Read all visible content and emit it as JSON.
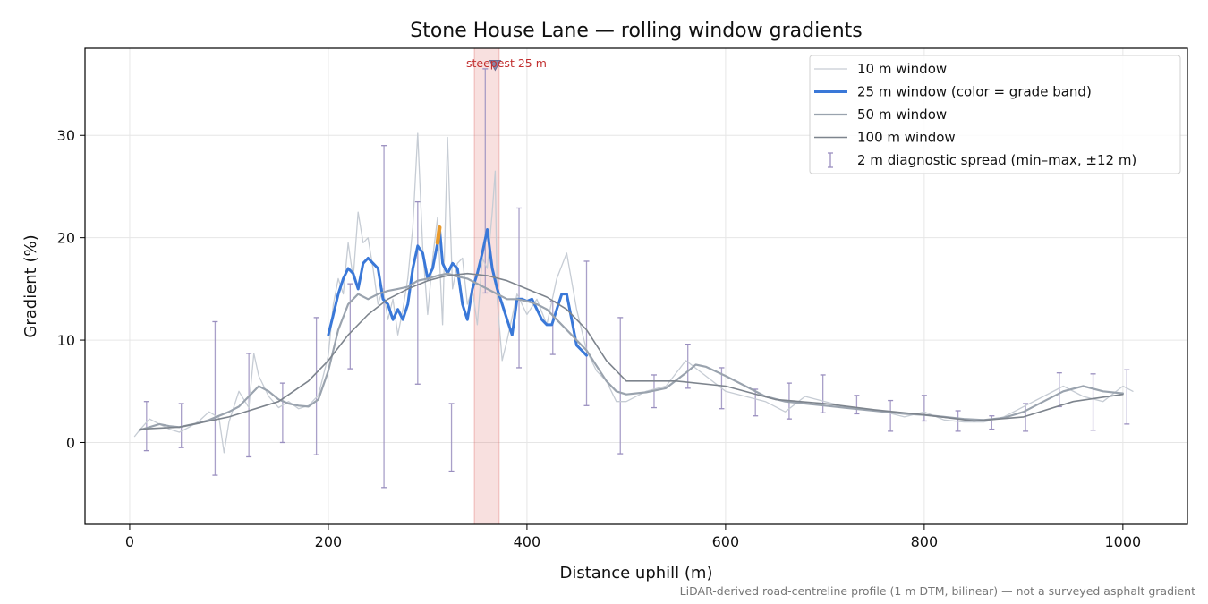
{
  "chart_data": {
    "type": "line",
    "title": "Stone House Lane — rolling window gradients",
    "xlabel": "Distance uphill (m)",
    "ylabel": "Gradient (%)",
    "xlim": [
      -45,
      1065
    ],
    "ylim": [
      -8,
      38.5
    ],
    "xticks": [
      0,
      200,
      400,
      600,
      800,
      1000
    ],
    "yticks": [
      0,
      10,
      20,
      30
    ],
    "grid": true,
    "legend_position": "top-right",
    "footnote": "LiDAR-derived road-centreline profile (1 m DTM, bilinear) — not a surveyed asphalt gradient",
    "highlight": {
      "label": "steepest 25 m",
      "x_start": 347,
      "x_end": 372,
      "marker_x": 368,
      "marker_y": 36.8,
      "color": "#d9534f"
    },
    "series": [
      {
        "name": "10 m window",
        "color": "#c6ccd4",
        "width": 1.3,
        "x": [
          5,
          10,
          20,
          30,
          40,
          50,
          60,
          70,
          80,
          90,
          95,
          100,
          110,
          120,
          125,
          130,
          140,
          150,
          160,
          170,
          180,
          190,
          200,
          205,
          210,
          215,
          220,
          225,
          230,
          235,
          240,
          245,
          250,
          255,
          260,
          265,
          270,
          275,
          280,
          285,
          290,
          295,
          300,
          305,
          310,
          315,
          320,
          325,
          330,
          335,
          340,
          345,
          350,
          355,
          360,
          365,
          368,
          370,
          375,
          380,
          390,
          400,
          410,
          420,
          430,
          440,
          450,
          460,
          470,
          480,
          490,
          500,
          520,
          540,
          560,
          580,
          600,
          620,
          640,
          660,
          680,
          700,
          720,
          740,
          760,
          780,
          800,
          820,
          840,
          860,
          880,
          900,
          920,
          940,
          960,
          980,
          1000,
          1010
        ],
        "y": [
          0.6,
          1.2,
          2.3,
          1.8,
          1.3,
          1.0,
          1.5,
          2.1,
          3.0,
          2.4,
          -1.0,
          2.0,
          5.0,
          3.4,
          8.7,
          6.5,
          4.5,
          3.4,
          4.0,
          3.3,
          3.6,
          4.6,
          8.5,
          13.5,
          16.0,
          14.5,
          19.5,
          16.0,
          22.5,
          19.5,
          20.0,
          17.0,
          13.5,
          15.0,
          12.0,
          14.0,
          10.5,
          13.0,
          16.0,
          21.0,
          30.2,
          19.0,
          12.5,
          18.0,
          22.0,
          11.5,
          29.8,
          15.0,
          17.5,
          18.0,
          13.5,
          15.0,
          11.5,
          18.0,
          17.0,
          22.5,
          26.5,
          14.0,
          8.0,
          10.0,
          14.5,
          12.5,
          14.0,
          11.5,
          16.0,
          18.5,
          13.0,
          9.0,
          7.0,
          6.0,
          4.0,
          4.0,
          5.0,
          5.5,
          8.0,
          6.5,
          5.0,
          4.5,
          4.0,
          3.0,
          4.5,
          4.0,
          3.5,
          3.2,
          3.0,
          2.5,
          3.0,
          2.2,
          2.0,
          2.0,
          2.5,
          3.5,
          4.5,
          5.5,
          4.5,
          4.0,
          5.5,
          5.0
        ]
      },
      {
        "name": "25 m window (color = grade band)",
        "color": "#3a78d8",
        "width": 3,
        "x": [
          200,
          205,
          210,
          215,
          220,
          225,
          230,
          235,
          240,
          245,
          250,
          255,
          260,
          265,
          270,
          275,
          280,
          285,
          290,
          295,
          300,
          305,
          310,
          312,
          315,
          320,
          325,
          330,
          335,
          340,
          345,
          350,
          355,
          360,
          365,
          370,
          375,
          380,
          385,
          390,
          395,
          400,
          405,
          410,
          415,
          420,
          425,
          430,
          435,
          440,
          445,
          450,
          455,
          460
        ],
        "y": [
          10.5,
          12.5,
          14.5,
          16.0,
          17.0,
          16.5,
          15.0,
          17.5,
          18.0,
          17.5,
          17.0,
          14.0,
          13.5,
          12.0,
          13.0,
          12.0,
          13.5,
          17.0,
          19.2,
          18.5,
          16.0,
          17.0,
          19.5,
          21.0,
          17.5,
          16.5,
          17.5,
          17.0,
          13.5,
          12.0,
          15.0,
          16.5,
          18.5,
          20.8,
          17.0,
          15.0,
          13.5,
          12.0,
          10.5,
          14.0,
          14.0,
          13.8,
          14.0,
          13.0,
          12.0,
          11.5,
          11.5,
          13.0,
          14.5,
          14.5,
          12.0,
          9.5,
          9.0,
          8.5
        ],
        "highlights": [
          {
            "x": [
              309,
              314
            ],
            "color": "#e89a2d"
          },
          {
            "x": [
              357,
              363
            ],
            "color": "#e89a2d"
          }
        ]
      },
      {
        "name": "50 m window",
        "color": "#9aa3ae",
        "width": 2.2,
        "x": [
          10,
          20,
          30,
          40,
          50,
          60,
          70,
          80,
          90,
          100,
          110,
          120,
          130,
          140,
          150,
          160,
          170,
          180,
          190,
          200,
          210,
          220,
          230,
          240,
          250,
          260,
          270,
          280,
          290,
          300,
          310,
          320,
          330,
          340,
          350,
          360,
          370,
          380,
          390,
          400,
          410,
          420,
          430,
          440,
          450,
          460,
          470,
          480,
          490,
          500,
          520,
          540,
          560,
          570,
          580,
          600,
          620,
          640,
          660,
          680,
          700,
          720,
          740,
          760,
          780,
          800,
          820,
          840,
          860,
          880,
          900,
          920,
          940,
          960,
          980,
          1000
        ],
        "y": [
          1.2,
          1.5,
          1.8,
          1.6,
          1.5,
          1.7,
          1.9,
          2.2,
          2.6,
          3.0,
          3.5,
          4.5,
          5.5,
          5.0,
          4.2,
          3.8,
          3.6,
          3.5,
          4.2,
          7.0,
          11.0,
          13.5,
          14.5,
          14.0,
          14.5,
          14.8,
          15.0,
          15.2,
          15.8,
          16.0,
          16.3,
          16.5,
          16.2,
          16.0,
          15.5,
          15.0,
          14.5,
          14.0,
          14.0,
          13.8,
          13.5,
          13.0,
          12.0,
          11.0,
          10.0,
          9.0,
          7.5,
          6.0,
          5.0,
          4.7,
          4.9,
          5.3,
          6.8,
          7.6,
          7.4,
          6.5,
          5.5,
          4.5,
          4.0,
          3.8,
          3.6,
          3.4,
          3.2,
          3.0,
          2.8,
          2.7,
          2.5,
          2.3,
          2.2,
          2.4,
          3.0,
          4.0,
          5.0,
          5.5,
          5.0,
          4.8
        ]
      },
      {
        "name": "100 m window",
        "color": "#7d848d",
        "width": 1.6,
        "x": [
          10,
          50,
          100,
          150,
          180,
          200,
          220,
          240,
          260,
          280,
          300,
          320,
          340,
          360,
          380,
          400,
          420,
          440,
          460,
          480,
          500,
          550,
          600,
          650,
          700,
          750,
          800,
          850,
          900,
          950,
          1000
        ],
        "y": [
          1.3,
          1.5,
          2.5,
          4.0,
          6.0,
          8.0,
          10.5,
          12.5,
          14.0,
          15.0,
          15.8,
          16.3,
          16.5,
          16.3,
          15.8,
          15.0,
          14.2,
          13.0,
          11.0,
          8.0,
          6.0,
          6.0,
          5.5,
          4.2,
          3.8,
          3.2,
          2.7,
          2.1,
          2.5,
          4.0,
          4.7
        ]
      }
    ],
    "error_bars": {
      "name": "2 m diagnostic spread (min–max, ±12 m)",
      "color": "#9a8fbf",
      "points": [
        {
          "x": 17,
          "low": -0.8,
          "high": 4.0
        },
        {
          "x": 52,
          "low": -0.5,
          "high": 3.8
        },
        {
          "x": 86,
          "low": -3.2,
          "high": 11.8
        },
        {
          "x": 120,
          "low": -1.4,
          "high": 8.7
        },
        {
          "x": 154,
          "low": 0.0,
          "high": 5.8
        },
        {
          "x": 188,
          "low": -1.2,
          "high": 12.2
        },
        {
          "x": 222,
          "low": 7.2,
          "high": 15.5
        },
        {
          "x": 256,
          "low": -4.4,
          "high": 29.0
        },
        {
          "x": 290,
          "low": 5.7,
          "high": 23.5
        },
        {
          "x": 324,
          "low": -2.8,
          "high": 3.8
        },
        {
          "x": 358,
          "low": 14.6,
          "high": 36.5
        },
        {
          "x": 392,
          "low": 7.3,
          "high": 22.9
        },
        {
          "x": 426,
          "low": 8.6,
          "high": 13.8
        },
        {
          "x": 460,
          "low": 3.6,
          "high": 17.7
        },
        {
          "x": 494,
          "low": -1.1,
          "high": 12.2
        },
        {
          "x": 528,
          "low": 3.4,
          "high": 6.6
        },
        {
          "x": 562,
          "low": 5.3,
          "high": 9.6
        },
        {
          "x": 596,
          "low": 3.3,
          "high": 7.3
        },
        {
          "x": 630,
          "low": 2.6,
          "high": 5.2
        },
        {
          "x": 664,
          "low": 2.3,
          "high": 5.8
        },
        {
          "x": 698,
          "low": 2.9,
          "high": 6.6
        },
        {
          "x": 732,
          "low": 2.8,
          "high": 4.6
        },
        {
          "x": 766,
          "low": 1.1,
          "high": 4.1
        },
        {
          "x": 800,
          "low": 2.1,
          "high": 4.6
        },
        {
          "x": 834,
          "low": 1.1,
          "high": 3.1
        },
        {
          "x": 868,
          "low": 1.3,
          "high": 2.6
        },
        {
          "x": 902,
          "low": 1.1,
          "high": 3.8
        },
        {
          "x": 936,
          "low": 3.5,
          "high": 6.8
        },
        {
          "x": 970,
          "low": 1.2,
          "high": 6.7
        },
        {
          "x": 1004,
          "low": 1.8,
          "high": 7.1
        }
      ]
    }
  }
}
